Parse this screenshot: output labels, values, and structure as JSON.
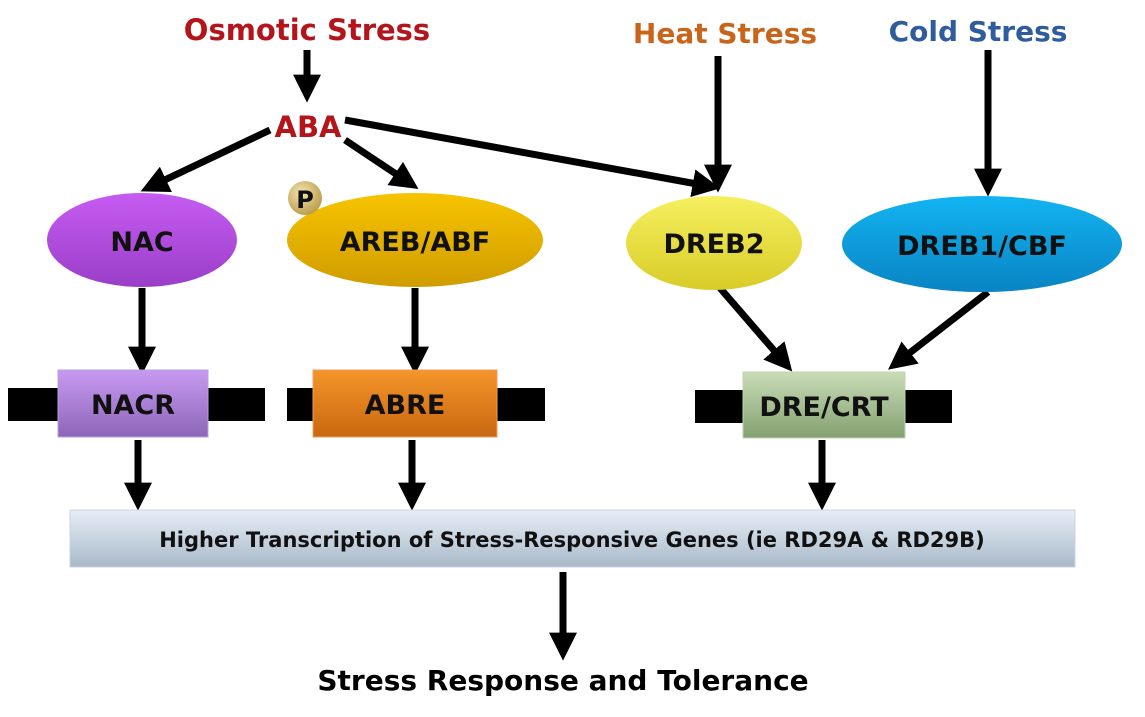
{
  "stresses": {
    "osmotic": {
      "label": "Osmotic Stress",
      "color": "#b3151b"
    },
    "heat": {
      "label": "Heat Stress",
      "color": "#c8651b"
    },
    "cold": {
      "label": "Cold Stress",
      "color": "#2f5c9c"
    }
  },
  "aba": {
    "label": "ABA",
    "color": "#b3151b"
  },
  "transcription_factors": [
    {
      "label": "NAC",
      "color_top": "#c65cf2",
      "color_bottom": "#9a3ec8"
    },
    {
      "label": "AREB/ABF",
      "color_top": "#f7c400",
      "color_bottom": "#d09c00",
      "badge": "P"
    },
    {
      "label": "DREB2",
      "color_top": "#f6f060",
      "color_bottom": "#d8cc28"
    },
    {
      "label": "DREB1/CBF",
      "color_top": "#12b4f2",
      "color_bottom": "#0a84c4"
    }
  ],
  "elements": [
    {
      "label": "NACR",
      "color_top": "#c79af2",
      "color_bottom": "#8c66b8"
    },
    {
      "label": "ABRE",
      "color_top": "#f5952a",
      "color_bottom": "#c86810"
    },
    {
      "label": "DRE/CRT",
      "color_top": "#c8dcb8",
      "color_bottom": "#84a070"
    }
  ],
  "genes_box": {
    "label": "Higher Transcription of Stress-Responsive Genes (ie RD29A & RD29B)"
  },
  "outcome": {
    "label": "Stress Response and Tolerance"
  }
}
